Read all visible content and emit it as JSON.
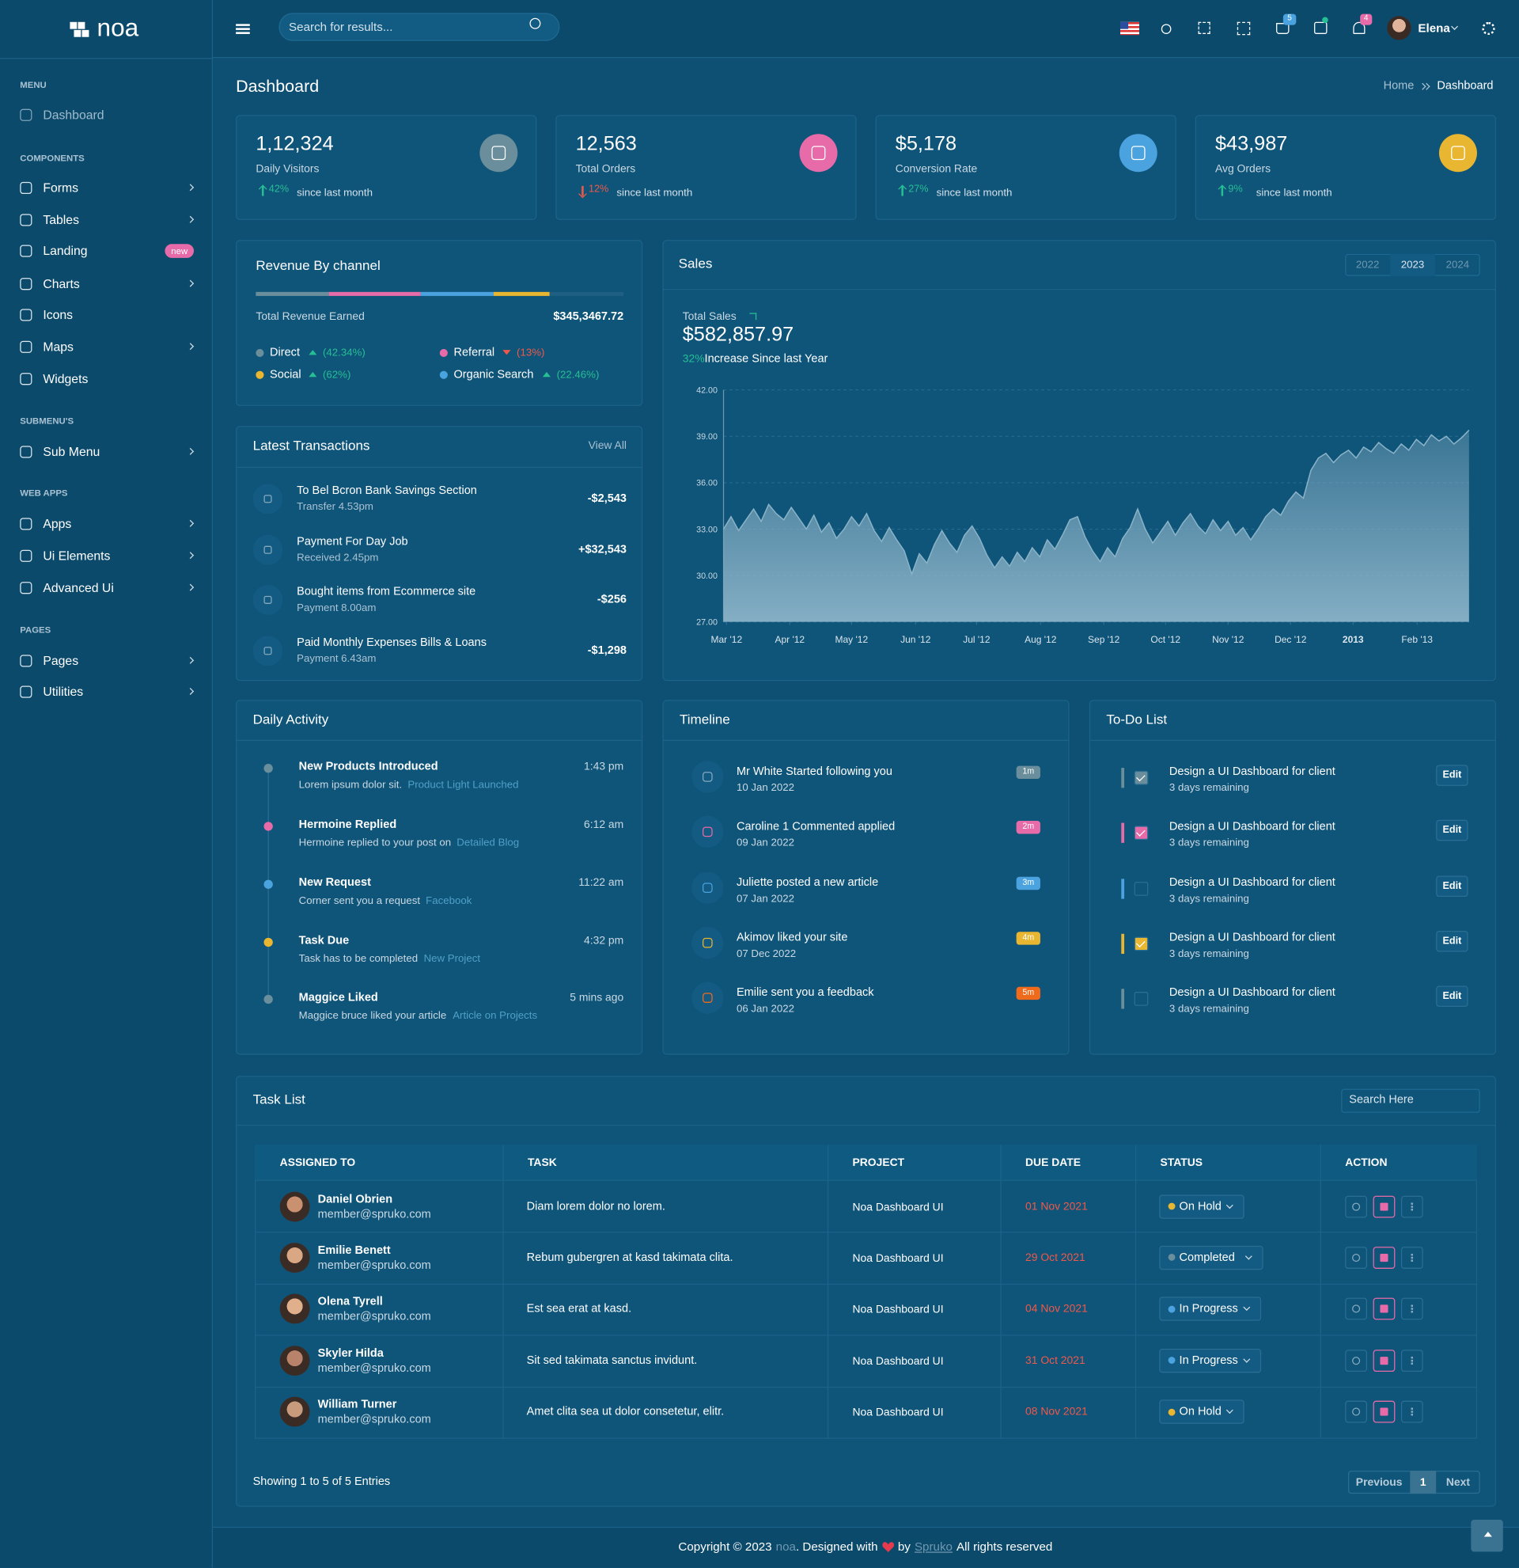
{
  "sidebar": {
    "logo": "noa",
    "badge": "new",
    "sections": [
      {
        "title": "MENU",
        "items": [
          "Dashboard"
        ]
      },
      {
        "title": "COMPONENTS",
        "items": [
          "Forms",
          "Tables",
          "Landing",
          "Charts",
          "Icons",
          "Maps",
          "Widgets"
        ]
      },
      {
        "title": "SUBMENU'S",
        "items": [
          "Sub Menu"
        ]
      },
      {
        "title": "WEB APPS",
        "items": [
          "Apps",
          "Ui Elements",
          "Advanced Ui"
        ]
      },
      {
        "title": "PAGES",
        "items": [
          "Pages",
          "Utilities"
        ]
      }
    ]
  },
  "header": {
    "search_placeholder": "Search for results...",
    "cart_count": "5",
    "notification_count": "4",
    "user": "Elena"
  },
  "page": {
    "title": "Dashboard",
    "breadcrumb": [
      "Home",
      "Dashboard"
    ]
  },
  "stats": [
    {
      "value": "1,12,324",
      "label": "Daily Visitors",
      "change": "42%",
      "trend": "up",
      "since": "since last month"
    },
    {
      "value": "12,563",
      "label": "Total Orders",
      "change": "12%",
      "trend": "down",
      "since": "since last month"
    },
    {
      "value": "$5,178",
      "label": "Conversion Rate",
      "change": "27%",
      "trend": "up",
      "since": "since last month"
    },
    {
      "value": "$43,987",
      "label": "Avg Orders",
      "change": "9%",
      "trend": "up",
      "since": "since last month"
    }
  ],
  "revenue": {
    "title": "Revenue By channel",
    "total_label": "Total Revenue Earned",
    "total": "$345,3467.72",
    "channels": [
      {
        "name": "Direct",
        "change": "(42.34%)",
        "trend": "up"
      },
      {
        "name": "Referral",
        "change": "(13%)",
        "trend": "down"
      },
      {
        "name": "Social",
        "change": "(62%)",
        "trend": "up"
      },
      {
        "name": "Organic Search",
        "change": "(22.46%)",
        "trend": "up"
      }
    ]
  },
  "transactions": {
    "title": "Latest Transactions",
    "view_all": "View All",
    "items": [
      {
        "title": "To Bel Bcron Bank Savings Section",
        "sub": "Transfer 4.53pm",
        "amount": "-$2,543"
      },
      {
        "title": "Payment For  Day Job",
        "sub": "Received 2.45pm",
        "amount": "+$32,543"
      },
      {
        "title": "Bought items from Ecommerce site",
        "sub": "Payment 8.00am",
        "amount": "-$256"
      },
      {
        "title": "Paid Monthly Expenses Bills & Loans",
        "sub": "Payment 6.43am",
        "amount": "-$1,298"
      }
    ]
  },
  "sales": {
    "years": [
      "2022",
      "2023",
      "2024"
    ],
    "total_label": "Total Sales",
    "total": "$582,857.97",
    "increase": "32%",
    "increase_text": "Increase Since last Year"
  },
  "chart_data": {
    "type": "area",
    "title": "Sales",
    "color": "#8ab3c8",
    "values": [
      33.0,
      33.8,
      32.9,
      33.6,
      34.3,
      33.5,
      34.6,
      34.0,
      33.6,
      34.4,
      33.7,
      33.0,
      33.9,
      32.8,
      33.4,
      32.4,
      33.0,
      33.8,
      33.2,
      34.0,
      32.9,
      32.2,
      33.1,
      32.3,
      31.6,
      30.1,
      31.4,
      30.8,
      32.0,
      32.9,
      32.1,
      31.5,
      32.6,
      33.2,
      32.4,
      31.3,
      30.5,
      31.2,
      30.6,
      31.5,
      30.9,
      31.8,
      31.2,
      32.3,
      31.7,
      32.6,
      33.6,
      33.8,
      32.5,
      31.6,
      30.9,
      31.8,
      31.2,
      32.4,
      33.1,
      34.3,
      33.0,
      32.1,
      32.8,
      33.5,
      32.6,
      33.4,
      34.0,
      33.2,
      32.7,
      33.6,
      32.9,
      33.5,
      32.6,
      33.1,
      32.3,
      33.0,
      33.8,
      34.3,
      33.9,
      34.8,
      35.4,
      35.0,
      36.8,
      37.6,
      37.9,
      37.3,
      37.8,
      38.1,
      37.6,
      38.3,
      38.0,
      38.6,
      38.2,
      37.9,
      38.5,
      38.1,
      38.8,
      38.4,
      39.1,
      38.7,
      39.0,
      38.5,
      38.9,
      39.4
    ],
    "xlim": [
      0,
      99
    ],
    "xticks": [
      {
        "value": 0.4,
        "label": "Mar '12"
      },
      {
        "value": 8.8,
        "label": "Apr '12"
      },
      {
        "value": 17,
        "label": "May '12"
      },
      {
        "value": 25.5,
        "label": "Jun '12"
      },
      {
        "value": 33.6,
        "label": "Jul '12"
      },
      {
        "value": 42.1,
        "label": "Aug '12"
      },
      {
        "value": 50.5,
        "label": "Sep '12"
      },
      {
        "value": 58.7,
        "label": "Oct '12"
      },
      {
        "value": 67,
        "label": "Nov '12"
      },
      {
        "value": 75.3,
        "label": "Dec '12"
      },
      {
        "value": 83.6,
        "label": "2013"
      },
      {
        "value": 92.1,
        "label": "Feb '13"
      }
    ],
    "ylim": [
      27,
      42
    ],
    "yticks": [
      {
        "value": 27,
        "label": "27.00"
      },
      {
        "value": 30,
        "label": "30.00"
      },
      {
        "value": 33,
        "label": "33.00"
      },
      {
        "value": 36,
        "label": "36.00"
      },
      {
        "value": 39,
        "label": "39.00"
      },
      {
        "value": 42,
        "label": "42.00"
      }
    ],
    "grid": true
  },
  "activity": {
    "title": "Daily Activity",
    "items": [
      {
        "title": "New Products Introduced",
        "time": "1:43 pm",
        "text": "Lorem ipsum dolor sit.",
        "link": "Product Light Launched"
      },
      {
        "title": "Hermoine Replied",
        "time": "6:12 am",
        "text": "Hermoine replied to your post on",
        "link": "Detailed Blog"
      },
      {
        "title": "New Request",
        "time": "11:22 am",
        "text": "Corner sent you a request",
        "link": "Facebook"
      },
      {
        "title": "Task Due",
        "time": "4:32 pm",
        "text": "Task has to be completed",
        "link": "New Project"
      },
      {
        "title": "Maggice Liked",
        "time": "5 mins ago",
        "text": "Maggice bruce liked your article",
        "link": "Article on Projects"
      }
    ]
  },
  "timeline": {
    "title": "Timeline",
    "items": [
      {
        "title": "Mr White Started following you",
        "date": "10 Jan 2022",
        "badge": "1m"
      },
      {
        "title": "Caroline 1 Commented applied",
        "date": "09 Jan 2022",
        "badge": "2m"
      },
      {
        "title": "Juliette posted a new article",
        "date": "07 Jan 2022",
        "badge": "3m"
      },
      {
        "title": "Akimov liked your site",
        "date": "07 Dec 2022",
        "badge": "4m"
      },
      {
        "title": "Emilie sent you a feedback",
        "date": "06 Jan 2022",
        "badge": "5m"
      }
    ]
  },
  "todo": {
    "title": "To-Do List",
    "button": "Edit",
    "items": [
      {
        "title": "Design a UI Dashboard for client",
        "remaining": "3 days remaining",
        "checked": true
      },
      {
        "title": "Design a UI Dashboard for client",
        "remaining": "3 days remaining",
        "checked": true
      },
      {
        "title": "Design a UI Dashboard for client",
        "remaining": "3 days remaining",
        "checked": false
      },
      {
        "title": "Design a UI Dashboard for client",
        "remaining": "3 days remaining",
        "checked": true
      },
      {
        "title": "Design a UI Dashboard for client",
        "remaining": "3 days remaining",
        "checked": false
      }
    ]
  },
  "tasks": {
    "title": "Task List",
    "search_placeholder": "Search Here",
    "columns": [
      "ASSIGNED TO",
      "TASK",
      "PROJECT",
      "DUE DATE",
      "STATUS",
      "ACTION"
    ],
    "rows": [
      {
        "name": "Daniel Obrien",
        "email": "member@spruko.com",
        "task": "Diam lorem dolor no lorem.",
        "project": "Noa Dashboard UI",
        "due": "01 Nov 2021",
        "status": "On Hold"
      },
      {
        "name": "Emilie Benett",
        "email": "member@spruko.com",
        "task": "Rebum gubergren at kasd takimata clita.",
        "project": "Noa Dashboard UI",
        "due": "29 Oct 2021",
        "status": "Completed"
      },
      {
        "name": "Olena Tyrell",
        "email": "member@spruko.com",
        "task": "Est sea erat at kasd.",
        "project": "Noa Dashboard UI",
        "due": "04 Nov 2021",
        "status": "In Progress"
      },
      {
        "name": "Skyler Hilda",
        "email": "member@spruko.com",
        "task": "Sit sed takimata sanctus invidunt.",
        "project": "Noa Dashboard UI",
        "due": "31 Oct 2021",
        "status": "In Progress"
      },
      {
        "name": "William Turner",
        "email": "member@spruko.com",
        "task": "Amet clita sea ut dolor consetetur, elitr.",
        "project": "Noa Dashboard UI",
        "due": "08 Nov 2021",
        "status": "On Hold"
      }
    ],
    "summary": "Showing 1 to 5 of 5 Entries",
    "pagination": [
      "Previous",
      "1",
      "Next"
    ]
  },
  "footer": {
    "copyright": "Copyright © 2023",
    "brand": "noa",
    "designed": ". Designed with",
    "by": "by",
    "author": "Spruko",
    "rights": "All rights reserved"
  }
}
